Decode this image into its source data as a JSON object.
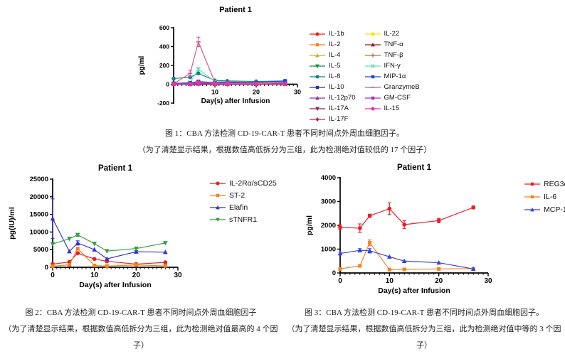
{
  "chart_data": [
    {
      "type": "line",
      "title": "Patient 1",
      "xlabel": "Day(s) after Infusion",
      "ylabel": "pg/ml",
      "x": [
        0,
        4,
        6,
        10,
        13,
        20,
        27
      ],
      "xlim": [
        0,
        30
      ],
      "ylim": [
        -200,
        600
      ],
      "yticks": [
        -200,
        0,
        200,
        400,
        600
      ],
      "xticks": [
        0,
        10,
        20,
        30
      ],
      "xtick_labels": [
        "",
        "10",
        "20",
        "30"
      ],
      "minor_x_step": 1,
      "x_axis_at": 0,
      "grid": "off",
      "legend_position": "right",
      "legend_rows": 9,
      "series": [
        {
          "name": "IL-1b",
          "color": "#ed1c24",
          "marker": "circle",
          "values": [
            2,
            3,
            5,
            3,
            2,
            2,
            3
          ]
        },
        {
          "name": "IL-2",
          "color": "#f5821f",
          "marker": "square",
          "values": [
            1,
            2,
            4,
            2,
            2,
            2,
            2
          ]
        },
        {
          "name": "IL-4",
          "color": "#c8b428",
          "marker": "triangle-up",
          "values": [
            1,
            2,
            3,
            2,
            1,
            1,
            2
          ]
        },
        {
          "name": "IL-5",
          "color": "#108c44",
          "marker": "triangle-down",
          "values": [
            2,
            3,
            6,
            3,
            2,
            2,
            2
          ]
        },
        {
          "name": "IL-8",
          "color": "#15808d",
          "marker": "circle",
          "values": [
            60,
            75,
            115,
            40,
            35,
            30,
            35
          ]
        },
        {
          "name": "IL-10",
          "color": "#2e2ea8",
          "marker": "square",
          "values": [
            6,
            10,
            28,
            14,
            16,
            14,
            25
          ]
        },
        {
          "name": "IL-12p70",
          "color": "#8632b4",
          "marker": "triangle-up",
          "values": [
            2,
            3,
            5,
            3,
            2,
            2,
            3
          ]
        },
        {
          "name": "IL-17A",
          "color": "#8b2565",
          "marker": "triangle-down",
          "values": [
            2,
            3,
            4,
            3,
            2,
            2,
            2
          ]
        },
        {
          "name": "IL-17F",
          "color": "#c81e50",
          "marker": "diamond",
          "values": [
            2,
            2,
            3,
            2,
            2,
            2,
            10
          ]
        },
        {
          "name": "IL-22",
          "color": "#f2e40a",
          "marker": "circle",
          "values": [
            3,
            4,
            6,
            4,
            3,
            3,
            3
          ]
        },
        {
          "name": "TNF-α",
          "color": "#9e1b1b",
          "marker": "triangle-up",
          "values": [
            3,
            5,
            10,
            5,
            4,
            3,
            4
          ]
        },
        {
          "name": "TNF-β",
          "color": "#c0742b",
          "marker": "plus",
          "values": [
            2,
            3,
            5,
            3,
            2,
            2,
            3
          ]
        },
        {
          "name": "IFN-γ",
          "color": "#63e0b8",
          "marker": "x",
          "values": [
            5,
            20,
            160,
            30,
            28,
            22,
            18
          ],
          "err": [
            null,
            null,
            18,
            null,
            null,
            null,
            null
          ]
        },
        {
          "name": "MIP-1α",
          "color": "#2244dd",
          "marker": "square",
          "values": [
            10,
            15,
            30,
            16,
            20,
            18,
            35
          ]
        },
        {
          "name": "GranzymeB",
          "color": "#d6558c",
          "marker": "dash",
          "values": [
            5,
            115,
            450,
            20,
            25,
            20,
            15
          ],
          "err": [
            null,
            35,
            50,
            null,
            null,
            null,
            null
          ]
        },
        {
          "name": "GM-CSF",
          "color": "#aa33cc",
          "marker": "square",
          "values": [
            2,
            3,
            5,
            3,
            2,
            2,
            2
          ]
        },
        {
          "name": "IL-15",
          "color": "#ee3399",
          "marker": "circle",
          "values": [
            3,
            5,
            20,
            8,
            6,
            5,
            5
          ]
        }
      ],
      "caption": [
        "图 1：CBA 方法检测 CD-19-CAR-T 患者不同时间点外周血细胞因子。",
        "（为了清楚显示结果，根据数值高低拆分为三组，此为检测绝对值较低的 17 个因子）"
      ]
    },
    {
      "type": "line",
      "title": "Patient 1",
      "xlabel": "Day(s) after Infusion",
      "ylabel": "pg(IU)/ml",
      "x": [
        0,
        4,
        6,
        10,
        13,
        20,
        27
      ],
      "xlim": [
        0,
        30
      ],
      "ylim": [
        0,
        25000
      ],
      "yticks": [
        0,
        5000,
        10000,
        15000,
        20000,
        25000
      ],
      "xticks": [
        0,
        10,
        20,
        30
      ],
      "xtick_labels": [
        "0",
        "10",
        "20",
        "30"
      ],
      "minor_x_step": 1,
      "x_axis_at": 0,
      "grid": "off",
      "legend_position": "right",
      "series": [
        {
          "name": "IL-2Rα/sCD25",
          "color": "#ed1c24",
          "marker": "circle",
          "values": [
            900,
            1500,
            4000,
            2350,
            1700,
            900,
            1400
          ],
          "err": [
            null,
            null,
            300,
            null,
            null,
            null,
            null
          ]
        },
        {
          "name": "ST-2",
          "color": "#f5821f",
          "marker": "square",
          "values": [
            300,
            700,
            5300,
            500,
            350,
            650,
            400
          ]
        },
        {
          "name": "Elafin",
          "color": "#3333cc",
          "marker": "triangle-up",
          "values": [
            13800,
            4500,
            6900,
            5000,
            2400,
            4400,
            4300
          ],
          "err": [
            5600,
            null,
            600,
            null,
            null,
            300,
            null
          ]
        },
        {
          "name": "sTNFR1",
          "color": "#2f9e41",
          "marker": "triangle-down",
          "values": [
            6600,
            8100,
            9200,
            6700,
            4600,
            5300,
            6900
          ],
          "err": [
            null,
            null,
            400,
            null,
            null,
            null,
            null
          ]
        }
      ],
      "caption": [
        "图 2：CBA 方法检测 CD-19-CAR-T 患者不同时间点外周血细胞因子",
        "（为了清楚显示结果，根据数值高低拆分为三组，此为检测绝对值最高的 4 个因子）"
      ]
    },
    {
      "type": "line",
      "title": "Patient 1",
      "xlabel": "Day(s) after Infusion",
      "ylabel": "pg/ml",
      "x": [
        0,
        4,
        6,
        10,
        13,
        20,
        27
      ],
      "xlim": [
        0,
        30
      ],
      "ylim": [
        0,
        4000
      ],
      "yticks": [
        0,
        1000,
        2000,
        3000,
        4000
      ],
      "xticks": [
        0,
        10,
        20,
        30
      ],
      "xtick_labels": [
        "0",
        "10",
        "20",
        "30"
      ],
      "minor_x_step": 1,
      "x_axis_at": 0,
      "grid": "off",
      "legend_position": "right",
      "series": [
        {
          "name": "REG3α",
          "color": "#ed1c24",
          "marker": "circle",
          "values": [
            1920,
            1880,
            2400,
            2700,
            2030,
            2200,
            2750
          ],
          "err": [
            100,
            180,
            70,
            250,
            170,
            90,
            60
          ]
        },
        {
          "name": "IL-6",
          "color": "#f5821f",
          "marker": "square",
          "values": [
            170,
            300,
            1270,
            140,
            150,
            170,
            180
          ],
          "err": [
            null,
            null,
            120,
            null,
            null,
            null,
            null
          ]
        },
        {
          "name": "MCP-1",
          "color": "#3344dd",
          "marker": "triangle-up",
          "values": [
            820,
            950,
            930,
            680,
            500,
            430,
            170
          ],
          "err": [
            60,
            70,
            90,
            null,
            null,
            null,
            null
          ]
        }
      ],
      "caption": [
        "图 3：CBA 方法检测 CD-19-CAR-T 患者不同时间点外周血细胞因子。",
        "（为了清楚显示结果，根据数值高低拆分为三组，此为检测绝对值中等的 3 个因子）"
      ]
    }
  ]
}
